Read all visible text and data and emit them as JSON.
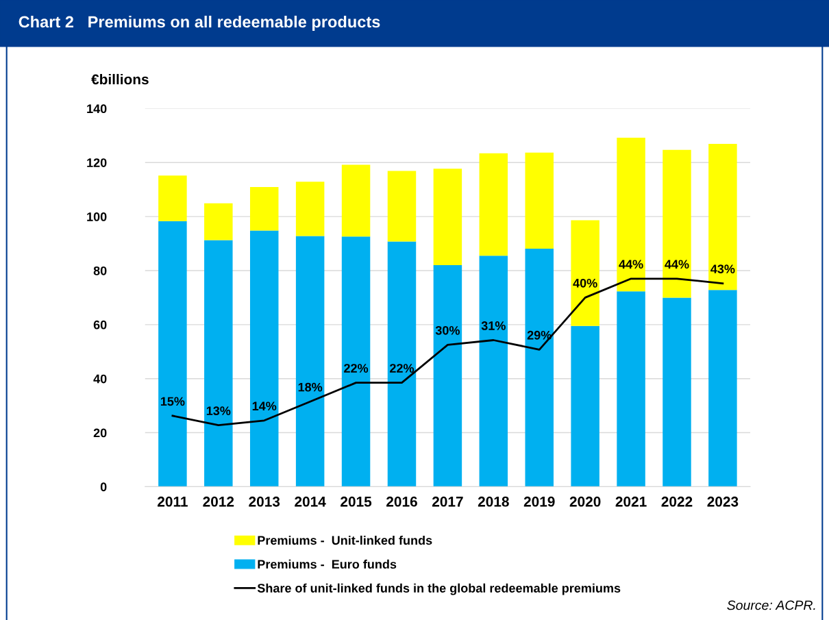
{
  "chart_data": {
    "type": "bar",
    "title": "Chart 2   Premiums on all redeemable products",
    "ylabel": "€billions",
    "categories": [
      "2011",
      "2012",
      "2013",
      "2014",
      "2015",
      "2016",
      "2017",
      "2018",
      "2019",
      "2020",
      "2021",
      "2022",
      "2023"
    ],
    "stacked": true,
    "series": [
      {
        "name": "Premiums -  Euro funds",
        "color": "#00b0f0",
        "values": [
          98.3,
          91.3,
          94.8,
          92.8,
          92.6,
          90.8,
          82.0,
          85.5,
          88.1,
          59.5,
          72.3,
          70.0,
          72.8
        ]
      },
      {
        "name": "Premiums -  Unit-linked funds",
        "color": "#ffff00",
        "values": [
          16.9,
          13.6,
          16.1,
          20.1,
          26.6,
          26.1,
          35.7,
          37.9,
          35.6,
          39.1,
          56.9,
          54.7,
          54.1
        ]
      },
      {
        "name": "Share of unit-linked funds in the global redeemable premiums",
        "type": "line",
        "axis": "y2",
        "color": "#000000",
        "value_labels": [
          "15%",
          "13%",
          "14%",
          "18%",
          "22%",
          "22%",
          "30%",
          "31%",
          "29%",
          "40%",
          "44%",
          "44%",
          "43%"
        ],
        "values": [
          15,
          13,
          14,
          18,
          22,
          22,
          30,
          31,
          29,
          40,
          44,
          44,
          43
        ]
      }
    ],
    "ylim": [
      0,
      140
    ],
    "yticks": [
      0,
      20,
      40,
      60,
      80,
      100,
      120,
      140
    ],
    "y2lim": [
      0,
      80
    ],
    "tick_labels": "x y",
    "grid": "y",
    "legend": "bottom",
    "annotations": [
      "Source: ACPR."
    ]
  }
}
